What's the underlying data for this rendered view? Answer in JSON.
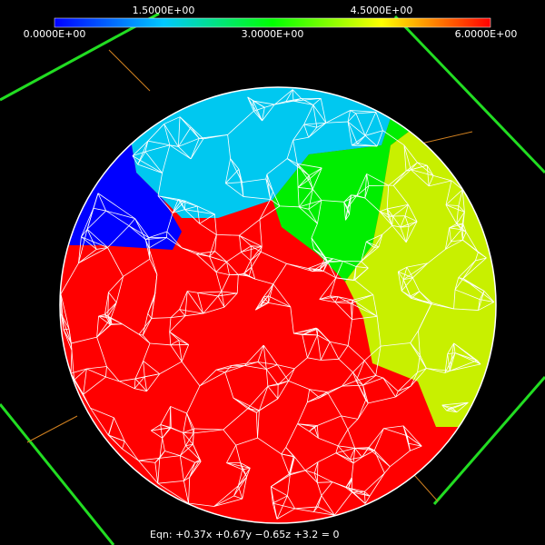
{
  "colorbar": {
    "labels_top": [
      "1.5000E+00",
      "4.5000E+00"
    ],
    "labels_bottom": [
      "0.0000E+00",
      "3.0000E+00",
      "6.0000E+00"
    ]
  },
  "equation": "Eqn:  +0.37x +0.67y −0.65z +3.2 = 0"
}
